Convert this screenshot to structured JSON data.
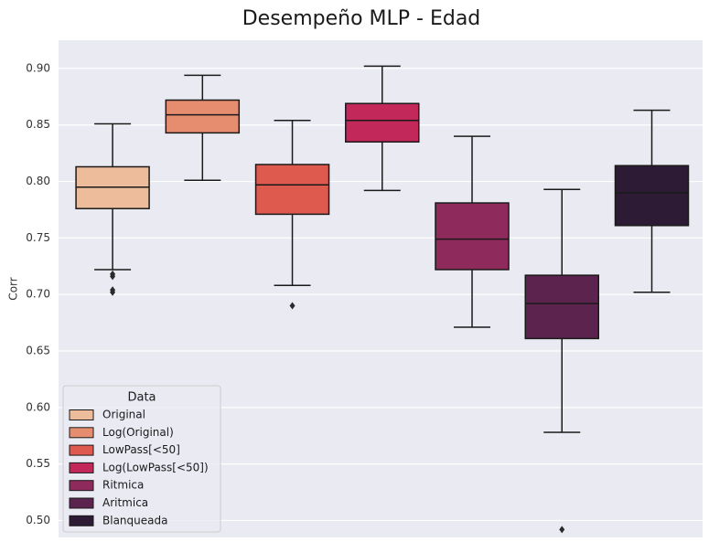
{
  "chart_data": {
    "type": "box",
    "title": "Desempeño MLP - Edad",
    "xlabel": "",
    "ylabel": "Corr",
    "ylim": [
      0.485,
      0.925
    ],
    "yticks": [
      "0.50",
      "0.55",
      "0.60",
      "0.65",
      "0.70",
      "0.75",
      "0.80",
      "0.85",
      "0.90"
    ],
    "grid": true,
    "legend": {
      "title": "Data",
      "position": "bottom-left"
    },
    "series": [
      {
        "name": "Original",
        "color": "#edbd9b",
        "whisker_low": 0.722,
        "q1": 0.776,
        "median": 0.795,
        "q3": 0.813,
        "whisker_high": 0.851,
        "outliers": [
          0.718,
          0.716,
          0.704,
          0.702
        ]
      },
      {
        "name": "Log(Original)",
        "color": "#e68d6f",
        "whisker_low": 0.801,
        "q1": 0.843,
        "median": 0.859,
        "q3": 0.872,
        "whisker_high": 0.894,
        "outliers": []
      },
      {
        "name": "LowPass[<50]",
        "color": "#de5a4e",
        "whisker_low": 0.708,
        "q1": 0.771,
        "median": 0.797,
        "q3": 0.815,
        "whisker_high": 0.854,
        "outliers": [
          0.69
        ]
      },
      {
        "name": "Log(LowPass[<50])",
        "color": "#c2295a",
        "whisker_low": 0.792,
        "q1": 0.835,
        "median": 0.854,
        "q3": 0.869,
        "whisker_high": 0.902,
        "outliers": []
      },
      {
        "name": "Ritmica",
        "color": "#8e2a5c",
        "whisker_low": 0.671,
        "q1": 0.722,
        "median": 0.749,
        "q3": 0.781,
        "whisker_high": 0.84,
        "outliers": []
      },
      {
        "name": "Aritmica",
        "color": "#5c234f",
        "whisker_low": 0.578,
        "q1": 0.661,
        "median": 0.692,
        "q3": 0.717,
        "whisker_high": 0.793,
        "outliers": [
          0.492
        ]
      },
      {
        "name": "Blanqueada",
        "color": "#2d1a35",
        "whisker_low": 0.702,
        "q1": 0.761,
        "median": 0.79,
        "q3": 0.814,
        "whisker_high": 0.863,
        "outliers": []
      }
    ]
  }
}
